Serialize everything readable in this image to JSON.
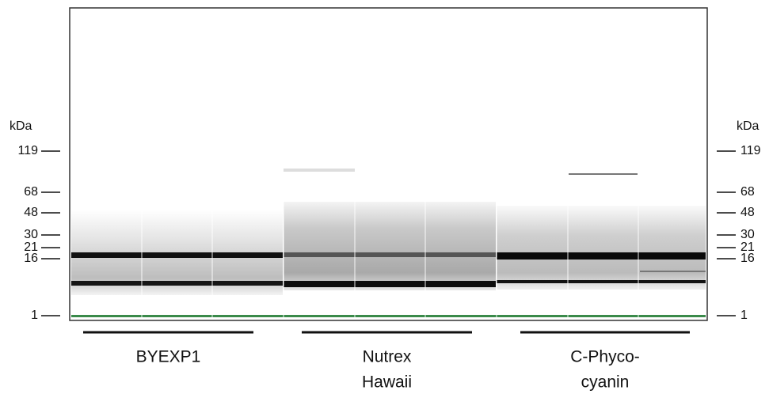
{
  "axis_unit_left": "kDa",
  "axis_unit_right": "kDa",
  "markers": [
    119,
    68,
    48,
    30,
    21,
    16,
    1
  ],
  "groups": [
    {
      "label_lines": [
        "BYEXP1"
      ]
    },
    {
      "label_lines": [
        "Nutrex",
        "Hawaii"
      ]
    },
    {
      "label_lines": [
        "C-Phyco-",
        "cyanin"
      ]
    }
  ]
}
